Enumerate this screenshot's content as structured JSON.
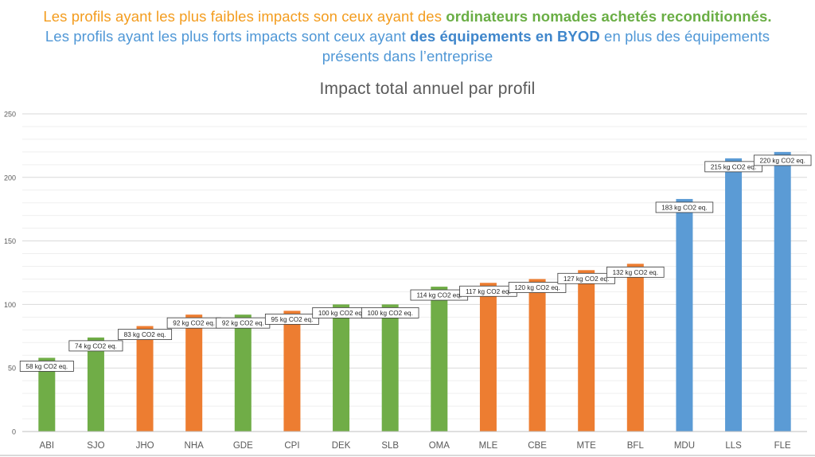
{
  "headline": {
    "line1_prefix": "Les profils ayant les plus faibles impacts son ceux ayant des ",
    "line1_bold": "ordinateurs nomades achetés reconditionnés.",
    "line2_prefix": "Les profils ayant les plus forts impacts sont ceux ayant ",
    "line2_bold": "des équipements en BYOD",
    "line2_suffix": " en plus des équipements",
    "line3": "présents dans l’entreprise"
  },
  "colors": {
    "green": "#70AD47",
    "orange": "#ED7D31",
    "blue": "#5B9BD5",
    "headline_orange": "#F39C1E",
    "headline_green": "#6AAE45",
    "headline_blue": "#4F97D6"
  },
  "chart_data": {
    "type": "bar",
    "title": "Impact total annuel par profil",
    "xlabel": "",
    "ylabel": "",
    "ylim": [
      0,
      250
    ],
    "yticks": [
      0,
      50,
      100,
      150,
      200,
      250
    ],
    "grid": true,
    "categories": [
      "ABI",
      "SJO",
      "JHO",
      "NHA",
      "GDE",
      "CPI",
      "DEK",
      "SLB",
      "OMA",
      "MLE",
      "CBE",
      "MTE",
      "BFL",
      "MDU",
      "LLS",
      "FLE"
    ],
    "values": [
      58,
      74,
      83,
      92,
      92,
      95,
      100,
      100,
      114,
      117,
      120,
      127,
      132,
      183,
      215,
      220
    ],
    "bar_colors": [
      "green",
      "green",
      "orange",
      "orange",
      "green",
      "orange",
      "green",
      "green",
      "green",
      "orange",
      "orange",
      "orange",
      "orange",
      "blue",
      "blue",
      "blue"
    ],
    "data_labels": [
      "58 kg CO2 eq.",
      "74 kg CO2 eq.",
      "83 kg CO2 eq.",
      "92 kg CO2 eq.",
      "92 kg CO2 eq.",
      "95 kg CO2 eq.",
      "100 kg CO2 eq.",
      "100 kg CO2 eq.",
      "114 kg CO2 eq.",
      "117 kg CO2 eq.",
      "120 kg CO2 eq.",
      "127 kg CO2 eq.",
      "132 kg CO2 eq.",
      "183 kg CO2 eq.",
      "215 kg CO2 eq.",
      "220 kg CO2 eq."
    ]
  }
}
